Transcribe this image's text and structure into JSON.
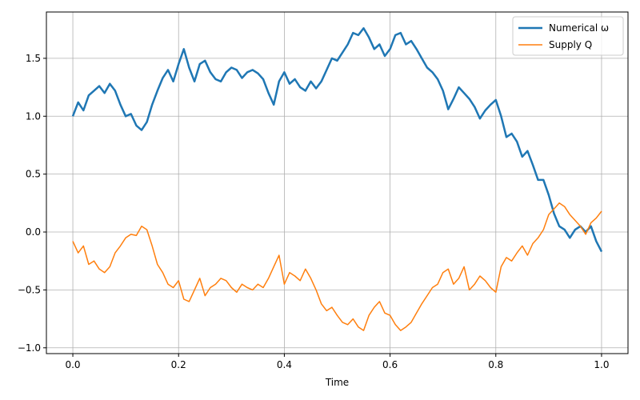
{
  "chart_data": {
    "type": "line",
    "xlabel": "Time",
    "ylabel": "",
    "xlim": [
      -0.05,
      1.05
    ],
    "ylim": [
      -1.05,
      1.9
    ],
    "xticks": [
      0.0,
      0.2,
      0.4,
      0.6,
      0.8,
      1.0
    ],
    "xtick_labels": [
      "0.0",
      "0.2",
      "0.4",
      "0.6",
      "0.8",
      "1.0"
    ],
    "yticks": [
      -1.0,
      -0.5,
      0.0,
      0.5,
      1.0,
      1.5
    ],
    "ytick_labels": [
      "−1.0",
      "−0.5",
      "0.0",
      "0.5",
      "1.0",
      "1.5"
    ],
    "grid": true,
    "legend_position": "top-right",
    "series": [
      {
        "name": "Numerical ω",
        "color": "#1f77b4",
        "line_width": "thick",
        "x": [
          0.0,
          0.01,
          0.02,
          0.03,
          0.04,
          0.05,
          0.06,
          0.07,
          0.08,
          0.09,
          0.1,
          0.11,
          0.12,
          0.13,
          0.14,
          0.15,
          0.16,
          0.17,
          0.18,
          0.19,
          0.2,
          0.21,
          0.22,
          0.23,
          0.24,
          0.25,
          0.26,
          0.27,
          0.28,
          0.29,
          0.3,
          0.31,
          0.32,
          0.33,
          0.34,
          0.35,
          0.36,
          0.37,
          0.38,
          0.39,
          0.4,
          0.41,
          0.42,
          0.43,
          0.44,
          0.45,
          0.46,
          0.47,
          0.48,
          0.49,
          0.5,
          0.51,
          0.52,
          0.53,
          0.54,
          0.55,
          0.56,
          0.57,
          0.58,
          0.59,
          0.6,
          0.61,
          0.62,
          0.63,
          0.64,
          0.65,
          0.66,
          0.67,
          0.68,
          0.69,
          0.7,
          0.71,
          0.72,
          0.73,
          0.74,
          0.75,
          0.76,
          0.77,
          0.78,
          0.79,
          0.8,
          0.81,
          0.82,
          0.83,
          0.84,
          0.85,
          0.86,
          0.87,
          0.88,
          0.89,
          0.9,
          0.91,
          0.92,
          0.93,
          0.94,
          0.95,
          0.96,
          0.97,
          0.98,
          0.99,
          1.0
        ],
        "values": [
          1.0,
          1.12,
          1.05,
          1.18,
          1.22,
          1.26,
          1.2,
          1.28,
          1.22,
          1.1,
          1.0,
          1.02,
          0.92,
          0.88,
          0.95,
          1.1,
          1.22,
          1.33,
          1.4,
          1.3,
          1.45,
          1.58,
          1.42,
          1.3,
          1.45,
          1.48,
          1.38,
          1.32,
          1.3,
          1.38,
          1.42,
          1.4,
          1.33,
          1.38,
          1.4,
          1.37,
          1.32,
          1.2,
          1.1,
          1.3,
          1.38,
          1.28,
          1.32,
          1.25,
          1.22,
          1.3,
          1.24,
          1.3,
          1.4,
          1.5,
          1.48,
          1.55,
          1.62,
          1.72,
          1.7,
          1.76,
          1.68,
          1.58,
          1.62,
          1.52,
          1.58,
          1.7,
          1.72,
          1.62,
          1.65,
          1.58,
          1.5,
          1.42,
          1.38,
          1.32,
          1.22,
          1.06,
          1.15,
          1.25,
          1.2,
          1.15,
          1.08,
          0.98,
          1.05,
          1.1,
          1.14,
          1.0,
          0.82,
          0.85,
          0.78,
          0.65,
          0.7,
          0.58,
          0.45,
          0.45,
          0.32,
          0.16,
          0.05,
          0.02,
          -0.05,
          0.02,
          0.05,
          0.0,
          0.05,
          -0.08,
          -0.17
        ]
      },
      {
        "name": "Supply Q",
        "color": "#ff7f0e",
        "line_width": "thin",
        "x": [
          0.0,
          0.01,
          0.02,
          0.03,
          0.04,
          0.05,
          0.06,
          0.07,
          0.08,
          0.09,
          0.1,
          0.11,
          0.12,
          0.13,
          0.14,
          0.15,
          0.16,
          0.17,
          0.18,
          0.19,
          0.2,
          0.21,
          0.22,
          0.23,
          0.24,
          0.25,
          0.26,
          0.27,
          0.28,
          0.29,
          0.3,
          0.31,
          0.32,
          0.33,
          0.34,
          0.35,
          0.36,
          0.37,
          0.38,
          0.39,
          0.4,
          0.41,
          0.42,
          0.43,
          0.44,
          0.45,
          0.46,
          0.47,
          0.48,
          0.49,
          0.5,
          0.51,
          0.52,
          0.53,
          0.54,
          0.55,
          0.56,
          0.57,
          0.58,
          0.59,
          0.6,
          0.61,
          0.62,
          0.63,
          0.64,
          0.65,
          0.66,
          0.67,
          0.68,
          0.69,
          0.7,
          0.71,
          0.72,
          0.73,
          0.74,
          0.75,
          0.76,
          0.77,
          0.78,
          0.79,
          0.8,
          0.81,
          0.82,
          0.83,
          0.84,
          0.85,
          0.86,
          0.87,
          0.88,
          0.89,
          0.9,
          0.91,
          0.92,
          0.93,
          0.94,
          0.95,
          0.96,
          0.97,
          0.98,
          0.99,
          1.0
        ],
        "values": [
          -0.08,
          -0.18,
          -0.12,
          -0.28,
          -0.25,
          -0.32,
          -0.35,
          -0.3,
          -0.18,
          -0.12,
          -0.05,
          -0.02,
          -0.03,
          0.05,
          0.02,
          -0.12,
          -0.28,
          -0.35,
          -0.45,
          -0.48,
          -0.42,
          -0.58,
          -0.6,
          -0.5,
          -0.4,
          -0.55,
          -0.48,
          -0.45,
          -0.4,
          -0.42,
          -0.48,
          -0.52,
          -0.45,
          -0.48,
          -0.5,
          -0.45,
          -0.48,
          -0.4,
          -0.3,
          -0.2,
          -0.45,
          -0.35,
          -0.38,
          -0.42,
          -0.32,
          -0.4,
          -0.5,
          -0.62,
          -0.68,
          -0.65,
          -0.72,
          -0.78,
          -0.8,
          -0.75,
          -0.82,
          -0.85,
          -0.72,
          -0.65,
          -0.6,
          -0.7,
          -0.72,
          -0.8,
          -0.85,
          -0.82,
          -0.78,
          -0.7,
          -0.62,
          -0.55,
          -0.48,
          -0.45,
          -0.35,
          -0.32,
          -0.45,
          -0.4,
          -0.3,
          -0.5,
          -0.45,
          -0.38,
          -0.42,
          -0.48,
          -0.52,
          -0.3,
          -0.22,
          -0.25,
          -0.18,
          -0.12,
          -0.2,
          -0.1,
          -0.05,
          0.02,
          0.15,
          0.2,
          0.25,
          0.22,
          0.15,
          0.1,
          0.05,
          -0.02,
          0.08,
          0.12,
          0.18
        ]
      }
    ]
  }
}
